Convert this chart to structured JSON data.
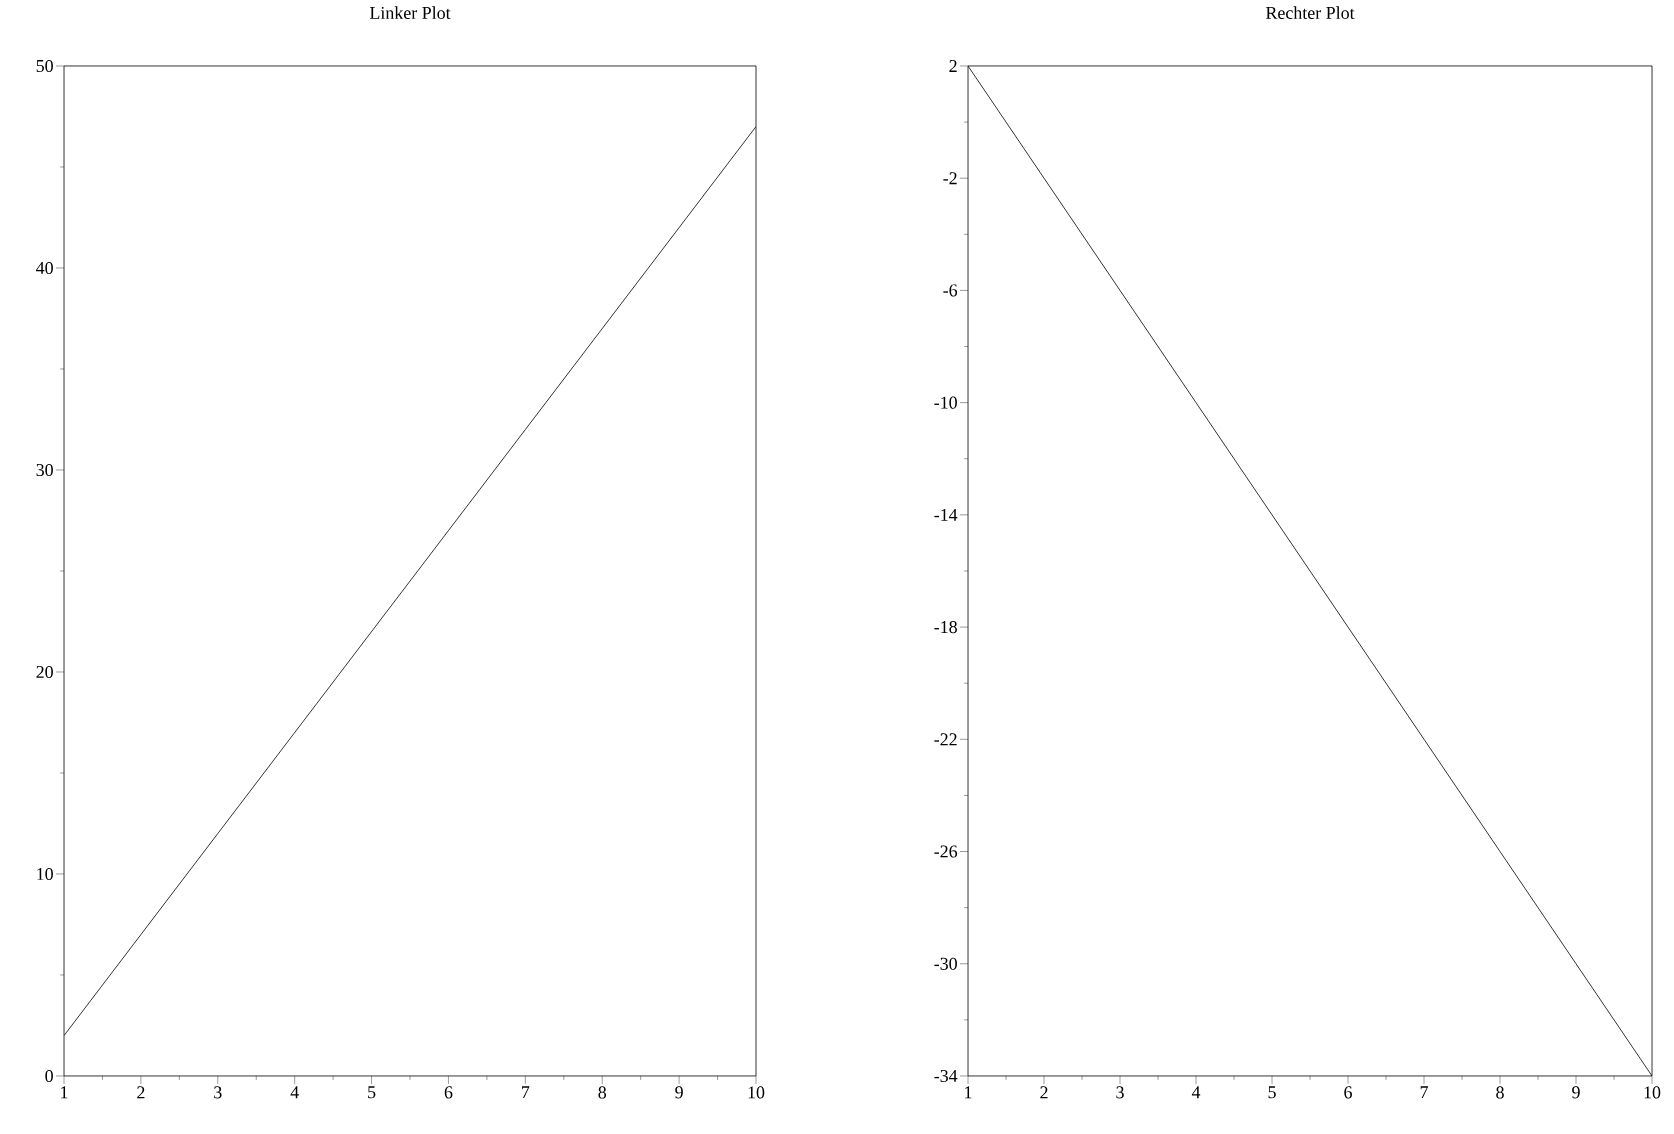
{
  "chart_data": [
    {
      "type": "line",
      "title": "Linker Plot",
      "x": [
        1,
        2,
        3,
        4,
        5,
        6,
        7,
        8,
        9,
        10
      ],
      "values": [
        2,
        7,
        12,
        17,
        22,
        27,
        32,
        37,
        42,
        47
      ],
      "color": "#000000",
      "xlim": [
        1,
        10
      ],
      "ylim": [
        0,
        50
      ],
      "xticks": [
        1,
        2,
        3,
        4,
        5,
        6,
        7,
        8,
        9,
        10
      ],
      "yticks": [
        0,
        10,
        20,
        30,
        40,
        50
      ]
    },
    {
      "type": "line",
      "title": "Rechter Plot",
      "x": [
        1,
        2,
        3,
        4,
        5,
        6,
        7,
        8,
        9,
        10
      ],
      "values": [
        2,
        -2,
        -6,
        -10,
        -14,
        -18,
        -22,
        -26,
        -30,
        -34
      ],
      "color": "#000000",
      "xlim": [
        1,
        10
      ],
      "ylim": [
        -34,
        2
      ],
      "xticks": [
        1,
        2,
        3,
        4,
        5,
        6,
        7,
        8,
        9,
        10
      ],
      "yticks": [
        2,
        -2,
        -6,
        -10,
        -14,
        -18,
        -22,
        -26,
        -30,
        -34
      ]
    }
  ]
}
